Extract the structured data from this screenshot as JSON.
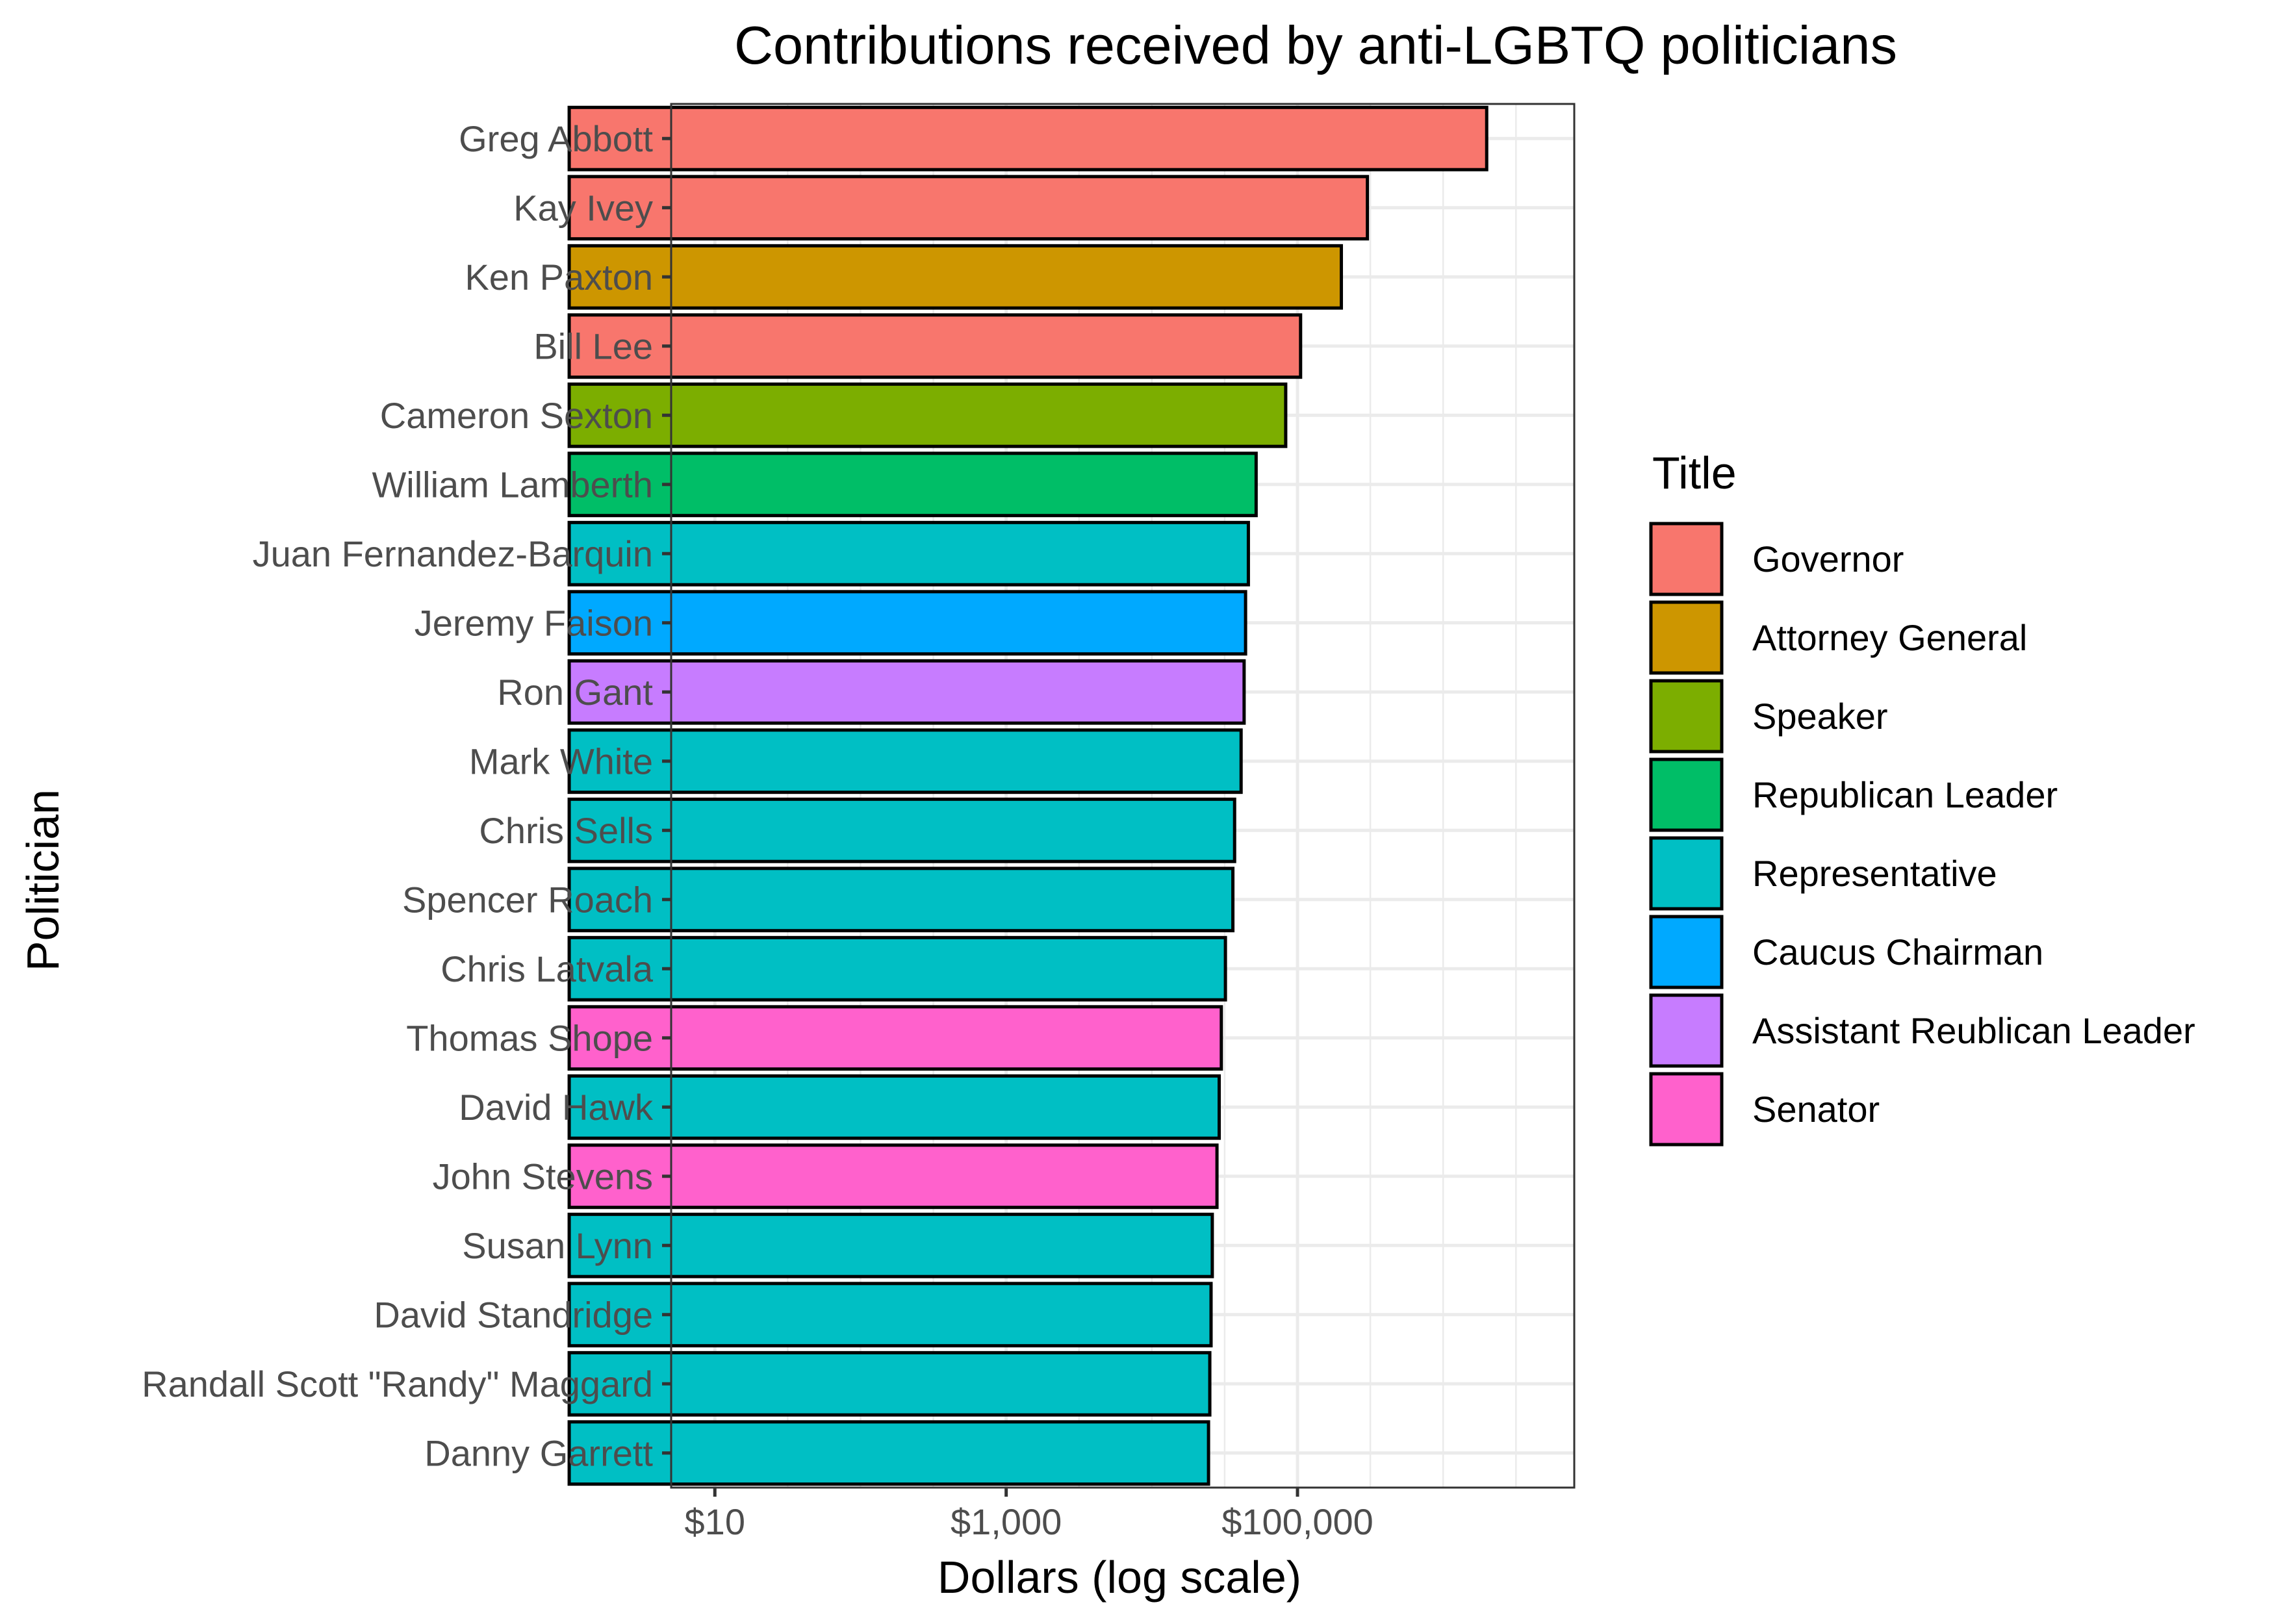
{
  "chart_data": {
    "type": "bar",
    "orientation": "horizontal",
    "title": "Contributions received by anti-LGBTQ politicians",
    "xlabel": "Dollars (log scale)",
    "ylabel": "Politician",
    "x_scale": "log10",
    "xlim": [
      0.7,
      6.9
    ],
    "x_ticks": [
      {
        "value": 10,
        "label": "$10"
      },
      {
        "value": 1000,
        "label": "$1,000"
      },
      {
        "value": 100000,
        "label": "$100,000"
      }
    ],
    "bar_base": 1,
    "grid": true,
    "legend": {
      "title": "Title",
      "position": "right",
      "entries": [
        {
          "label": "Governor",
          "color": "#F8766D"
        },
        {
          "label": "Attorney General",
          "color": "#CD9600"
        },
        {
          "label": "Speaker",
          "color": "#7CAE00"
        },
        {
          "label": "Republican Leader",
          "color": "#00BE67"
        },
        {
          "label": "Representative",
          "color": "#00BFC4"
        },
        {
          "label": "Caucus Chairman",
          "color": "#00A9FF"
        },
        {
          "label": "Assistant Reublican Leader",
          "color": "#C77CFF"
        },
        {
          "label": "Senator",
          "color": "#FF61CC"
        }
      ]
    },
    "bars": [
      {
        "politician": "Greg Abbott",
        "value": 1990000,
        "title": "Governor"
      },
      {
        "politician": "Kay Ivey",
        "value": 302000,
        "title": "Governor"
      },
      {
        "politician": "Ken Paxton",
        "value": 200000,
        "title": "Attorney General"
      },
      {
        "politician": "Bill Lee",
        "value": 105000,
        "title": "Governor"
      },
      {
        "politician": "Cameron Sexton",
        "value": 83000,
        "title": "Speaker"
      },
      {
        "politician": "William Lamberth",
        "value": 52000,
        "title": "Republican Leader"
      },
      {
        "politician": "Juan Fernandez-Barquin",
        "value": 46000,
        "title": "Representative"
      },
      {
        "politician": "Jeremy Faison",
        "value": 44000,
        "title": "Caucus Chairman"
      },
      {
        "politician": "Ron Gant",
        "value": 43000,
        "title": "Assistant Reublican Leader"
      },
      {
        "politician": "Mark White",
        "value": 41000,
        "title": "Representative"
      },
      {
        "politician": "Chris Sells",
        "value": 37000,
        "title": "Representative"
      },
      {
        "politician": "Spencer Roach",
        "value": 36000,
        "title": "Representative"
      },
      {
        "politician": "Chris Latvala",
        "value": 32000,
        "title": "Representative"
      },
      {
        "politician": "Thomas Shope",
        "value": 30000,
        "title": "Senator"
      },
      {
        "politician": "David Hawk",
        "value": 29000,
        "title": "Representative"
      },
      {
        "politician": "John Stevens",
        "value": 28000,
        "title": "Senator"
      },
      {
        "politician": "Susan Lynn",
        "value": 26000,
        "title": "Representative"
      },
      {
        "politician": "David Standridge",
        "value": 25500,
        "title": "Representative"
      },
      {
        "politician": "Randall Scott \"Randy\" Maggard",
        "value": 25000,
        "title": "Representative"
      },
      {
        "politician": "Danny Garrett",
        "value": 24500,
        "title": "Representative"
      }
    ]
  }
}
